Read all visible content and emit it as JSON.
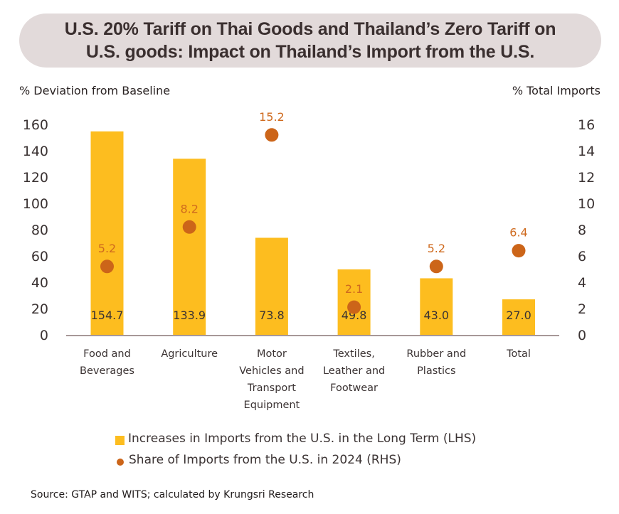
{
  "title": {
    "line1": "U.S. 20% Tariff on Thai Goods and Thailand’s Zero Tariff on",
    "line2": "U.S. goods: Impact on Thailand’s Import from the U.S."
  },
  "source": "Source: GTAP and WITS; calculated by Krungsri Research",
  "colors": {
    "bar": "#fdbd1f",
    "dot": "#cc6519",
    "dot_label": "#cf6a1e",
    "axis": "#8a7676",
    "title_bg": "#e2dada"
  },
  "chart_data": {
    "type": "bar",
    "title": "U.S. 20% Tariff on Thai Goods and Thailand’s Zero Tariff on U.S. goods: Impact on Thailand’s Import from the U.S.",
    "ylabel": "% Deviation from Baseline",
    "y2label": "% Total Imports",
    "xlabel": "",
    "ylim": [
      0,
      160
    ],
    "y2lim": [
      0,
      16
    ],
    "yticks": [
      "0",
      "20",
      "40",
      "60",
      "80",
      "100",
      "120",
      "140",
      "160"
    ],
    "y2ticks": [
      "0",
      "2",
      "4",
      "6",
      "8",
      "10",
      "12",
      "14",
      "16"
    ],
    "grid": false,
    "legend_position": "bottom",
    "categories": [
      [
        "Food and",
        "Beverages"
      ],
      [
        "Agriculture"
      ],
      [
        "Motor",
        "Vehicles and",
        "Transport",
        "Equipment"
      ],
      [
        "Textiles,",
        "Leather and",
        "Footwear"
      ],
      [
        "Rubber and",
        "Plastics"
      ],
      [
        "Total"
      ]
    ],
    "series": [
      {
        "name": "Increases in Imports from the U.S. in the Long Term (LHS)",
        "type": "bar",
        "axis": "left",
        "values": [
          154.7,
          133.9,
          73.8,
          49.8,
          43.0,
          27.0
        ],
        "labels": [
          "154.7",
          "133.9",
          "73.8",
          "49.8",
          "43.0",
          "27.0"
        ]
      },
      {
        "name": "Share of Imports from the U.S. in 2024 (RHS)",
        "type": "scatter",
        "axis": "right",
        "values": [
          5.2,
          8.2,
          15.2,
          2.1,
          5.2,
          6.4
        ],
        "labels": [
          "5.2",
          "8.2",
          "15.2",
          "2.1",
          "5.2",
          "6.4"
        ]
      }
    ]
  }
}
